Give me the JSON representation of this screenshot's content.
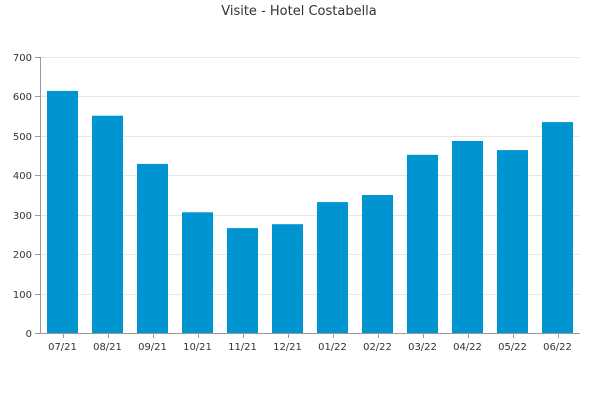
{
  "chart_data": {
    "type": "bar",
    "title": "Visite - Hotel Costabella",
    "xlabel": "",
    "ylabel": "",
    "categories": [
      "07/21",
      "08/21",
      "09/21",
      "10/21",
      "11/21",
      "12/21",
      "01/22",
      "02/22",
      "03/22",
      "04/22",
      "05/22",
      "06/22"
    ],
    "values": [
      614,
      551,
      429,
      306,
      266,
      276,
      332,
      350,
      452,
      487,
      464,
      535
    ],
    "ylim": [
      0,
      700
    ],
    "yticks": [
      0,
      100,
      200,
      300,
      400,
      500,
      600,
      700
    ],
    "grid": true,
    "legend": "none",
    "bar_color": "#0095d1"
  }
}
